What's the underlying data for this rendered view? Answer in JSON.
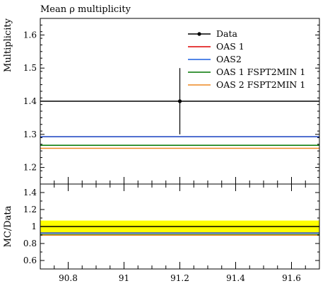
{
  "chart_data": {
    "type": "line",
    "title": "Mean ρ multiplicity",
    "main": {
      "ylabel": "Multiplicity",
      "ylim": [
        1.15,
        1.65
      ],
      "yticks": [
        1.2,
        1.3,
        1.4,
        1.5,
        1.6
      ],
      "ytick_labels": [
        "1.2",
        "1.3",
        "1.4",
        "1.5",
        "1.6"
      ],
      "data": {
        "name": "Data",
        "x": 91.2,
        "y": 1.4,
        "err_low": 1.3,
        "err_high": 1.5,
        "color": "#000000"
      },
      "series": [
        {
          "name": "OAS 1",
          "y": 1.293,
          "color": "#dd0000"
        },
        {
          "name": "OAS2",
          "y": 1.293,
          "color": "#1a5fe0"
        },
        {
          "name": "OAS 1 FSPT2MIN 1",
          "y": 1.267,
          "color": "#007700"
        },
        {
          "name": "OAS 2 FSPT2MIN 1",
          "y": 1.258,
          "color": "#ee8822"
        }
      ],
      "legend_position": "top-right"
    },
    "ratio": {
      "ylabel": "MC/Data",
      "ylim": [
        0.5,
        1.5
      ],
      "yticks": [
        0.6,
        0.8,
        1.0,
        1.2,
        1.4
      ],
      "ytick_labels": [
        "0.6",
        "0.8",
        "1",
        "1.2",
        "1.4"
      ],
      "band": [
        0.93,
        1.07
      ],
      "band_color": "#ffff00",
      "reference": 1.0,
      "series": [
        {
          "name": "OAS 1",
          "y": 0.924,
          "color": "#dd0000"
        },
        {
          "name": "OAS2",
          "y": 0.924,
          "color": "#1a5fe0"
        },
        {
          "name": "OAS 1 FSPT2MIN 1",
          "y": 0.905,
          "color": "#007700"
        },
        {
          "name": "OAS 2 FSPT2MIN 1",
          "y": 0.898,
          "color": "#ee8822"
        }
      ]
    },
    "x": {
      "xlim": [
        90.7,
        91.7
      ],
      "xticks": [
        90.8,
        91.0,
        91.2,
        91.4,
        91.6
      ],
      "xtick_labels": [
        "90.8",
        "91",
        "91.2",
        "91.4",
        "91.6"
      ],
      "minor_step": 0.05
    }
  }
}
